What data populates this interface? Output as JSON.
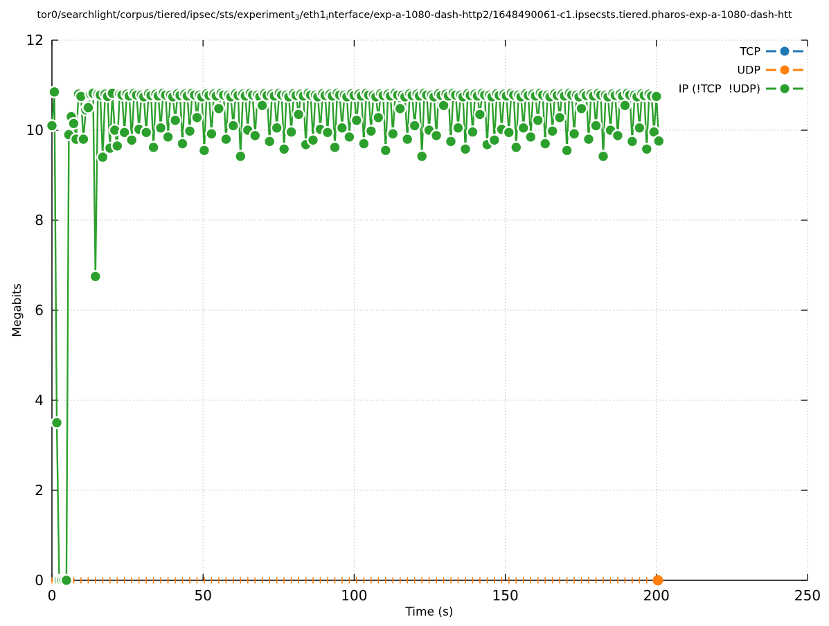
{
  "chart_data": {
    "type": "line",
    "title": {
      "p0": "tor0/searchlight/corpus/tiered/ipsec/sts/experiment",
      "sub0": "3",
      "p1": "/eth1",
      "sub1": "i",
      "p2": "nterface/exp-a-1080-dash-http2/1648490061-c1.ipsecsts.tiered.pharos-exp-a-1080-dash-htt"
    },
    "xlabel": "Time (s)",
    "ylabel": "Megabits",
    "xlim": [
      0,
      250
    ],
    "ylim": [
      0,
      12
    ],
    "xticks": [
      0,
      50,
      100,
      150,
      200,
      250
    ],
    "yticks": [
      0,
      2,
      4,
      6,
      8,
      10,
      12
    ],
    "grid": true,
    "legend": {
      "position": "top-right",
      "entries": [
        {
          "label": "TCP",
          "color": "#1f77b4"
        },
        {
          "label": "UDP",
          "color": "#ff7f0e"
        },
        {
          "label": "IP (!TCP  !UDP)",
          "color": "#2ca02c"
        }
      ]
    },
    "series": [
      {
        "name": "TCP",
        "color": "#1f77b4",
        "style": "linespoints",
        "constant_value": 0,
        "t_start": 0,
        "t_end": 200.5,
        "note": "constant zero, hidden beneath UDP series on the axis"
      },
      {
        "name": "UDP",
        "color": "#ff7f0e",
        "style": "linespoints",
        "constant_value": 0,
        "t_start": 0,
        "t_end": 200.5,
        "marker_interval": 2.4,
        "end_marker_t": 200.5
      },
      {
        "name": "IP (!TCP !UDP)",
        "color": "#2ca02c",
        "style": "linespoints",
        "t0": 0,
        "dt": 0.8,
        "values": [
          10.1,
          10.85,
          3.5,
          0,
          0,
          0,
          0,
          9.9,
          10.3,
          10.15,
          9.8,
          10.8,
          10.75,
          9.8,
          10.45,
          10.5,
          10.8,
          10.82,
          6.75,
          10.8,
          10.78,
          9.4,
          10.8,
          10.75,
          9.6,
          10.82,
          10.0,
          9.65,
          10.8,
          10.78,
          9.95,
          10.8,
          10.76,
          9.78,
          10.82,
          10.78,
          10.02,
          10.78,
          10.74,
          9.95,
          10.81,
          10.77,
          9.62,
          10.8,
          10.76,
          10.05,
          10.82,
          10.78,
          9.85,
          10.78,
          10.74,
          10.22,
          10.81,
          10.77,
          9.7,
          10.8,
          10.76,
          9.98,
          10.82,
          10.78,
          10.28,
          10.78,
          10.74,
          9.55,
          10.81,
          10.77,
          9.92,
          10.8,
          10.76,
          10.48,
          10.82,
          10.78,
          9.8,
          10.78,
          10.74,
          10.1,
          10.81,
          10.77,
          9.42,
          10.8,
          10.76,
          10.0,
          10.82,
          10.78,
          9.88,
          10.78,
          10.74,
          10.55,
          10.81,
          10.77,
          9.75,
          10.8,
          10.76,
          10.05,
          10.82,
          10.78,
          9.58,
          10.78,
          10.74,
          9.96,
          10.81,
          10.77,
          10.35,
          10.8,
          10.76,
          9.68,
          10.82,
          10.78,
          9.78,
          10.78,
          10.74,
          10.02,
          10.81,
          10.77,
          9.95,
          10.8,
          10.76,
          9.62,
          10.82,
          10.78,
          10.05,
          10.78,
          10.74,
          9.85,
          10.81,
          10.77,
          10.22,
          10.8,
          10.76,
          9.7,
          10.82,
          10.78,
          9.98,
          10.78,
          10.74,
          10.28,
          10.81,
          10.77,
          9.55,
          10.8,
          10.76,
          9.92,
          10.82,
          10.78,
          10.48,
          10.78,
          10.74,
          9.8,
          10.81,
          10.77,
          10.1,
          10.8,
          10.76,
          9.42,
          10.82,
          10.78,
          10.0,
          10.78,
          10.74,
          9.88,
          10.81,
          10.77,
          10.55,
          10.8,
          10.76,
          9.75,
          10.82,
          10.78,
          10.05,
          10.78,
          10.74,
          9.58,
          10.81,
          10.77,
          9.96,
          10.8,
          10.76,
          10.35,
          10.82,
          10.78,
          9.68,
          10.78,
          10.74,
          9.78,
          10.81,
          10.77,
          10.02,
          10.8,
          10.76,
          9.95,
          10.82,
          10.78,
          9.62,
          10.78,
          10.74,
          10.05,
          10.81,
          10.77,
          9.85,
          10.8,
          10.76,
          10.22,
          10.82,
          10.78,
          9.7,
          10.78,
          10.74,
          9.98,
          10.81,
          10.77,
          10.28,
          10.8,
          10.76,
          9.55,
          10.82,
          10.78,
          9.92,
          10.78,
          10.74,
          10.48,
          10.81,
          10.77,
          9.8,
          10.8,
          10.76,
          10.1,
          10.82,
          10.78,
          9.42,
          10.78,
          10.74,
          10.0,
          10.81,
          10.77,
          9.88,
          10.8,
          10.76,
          10.55,
          10.82,
          10.78,
          9.75,
          10.78,
          10.74,
          10.05,
          10.81,
          10.77,
          9.58,
          10.8,
          10.76,
          9.96,
          10.75,
          9.76
        ]
      }
    ]
  }
}
